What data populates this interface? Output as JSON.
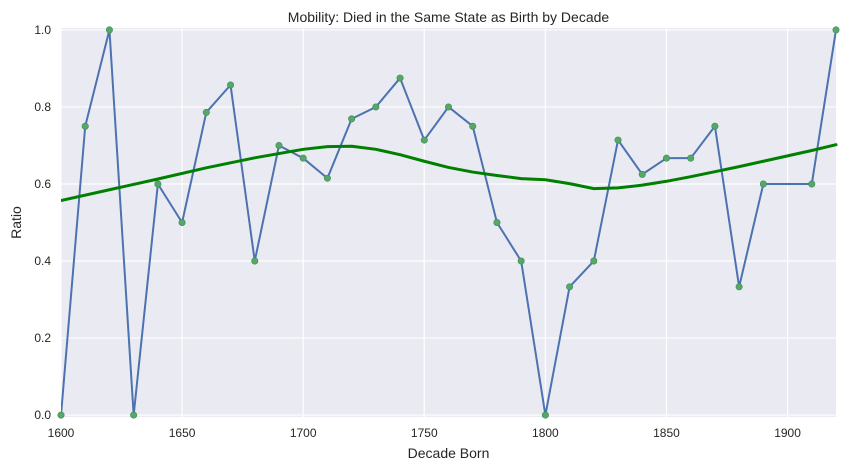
{
  "chart_data": {
    "type": "line",
    "title": "Mobility: Died in the Same State as Birth by Decade",
    "xlabel": "Decade Born",
    "ylabel": "Ratio",
    "xlim": [
      1600,
      1920
    ],
    "ylim": [
      -0.005,
      1.005
    ],
    "x_ticks": [
      1600,
      1650,
      1700,
      1750,
      1800,
      1850,
      1900
    ],
    "y_ticks": [
      0.0,
      0.2,
      0.4,
      0.6,
      0.8,
      1.0
    ],
    "y_tick_labels": [
      "0.0",
      "0.2",
      "0.4",
      "0.6",
      "0.8",
      "1.0"
    ],
    "grid": true,
    "background": "#eaeaf2",
    "series": [
      {
        "kind": "line-with-markers",
        "color": "#4c72b0",
        "marker_color": "#55a868",
        "x": [
          1600,
          1610,
          1620,
          1630,
          1640,
          1650,
          1660,
          1670,
          1680,
          1690,
          1700,
          1710,
          1720,
          1730,
          1740,
          1750,
          1760,
          1770,
          1780,
          1790,
          1800,
          1810,
          1820,
          1830,
          1840,
          1850,
          1860,
          1870,
          1880,
          1890,
          1910,
          1920
        ],
        "y": [
          0.0,
          0.75,
          1.0,
          0.0,
          0.6,
          0.5,
          0.786,
          0.857,
          0.4,
          0.7,
          0.667,
          0.615,
          0.769,
          0.8,
          0.875,
          0.714,
          0.8,
          0.75,
          0.5,
          0.4,
          0.0,
          0.333,
          0.4,
          0.714,
          0.625,
          0.667,
          0.667,
          0.75,
          0.333,
          0.6,
          0.6,
          1.0
        ]
      },
      {
        "kind": "smooth-trend",
        "color": "#008000",
        "x": [
          1600,
          1620,
          1640,
          1660,
          1680,
          1700,
          1710,
          1720,
          1730,
          1740,
          1750,
          1760,
          1770,
          1780,
          1790,
          1800,
          1810,
          1820,
          1830,
          1840,
          1850,
          1860,
          1870,
          1880,
          1890,
          1900,
          1910,
          1920
        ],
        "y": [
          0.557,
          0.585,
          0.613,
          0.642,
          0.668,
          0.69,
          0.697,
          0.698,
          0.69,
          0.676,
          0.659,
          0.643,
          0.631,
          0.622,
          0.614,
          0.611,
          0.601,
          0.588,
          0.59,
          0.597,
          0.607,
          0.619,
          0.632,
          0.645,
          0.659,
          0.673,
          0.687,
          0.702
        ]
      }
    ]
  }
}
